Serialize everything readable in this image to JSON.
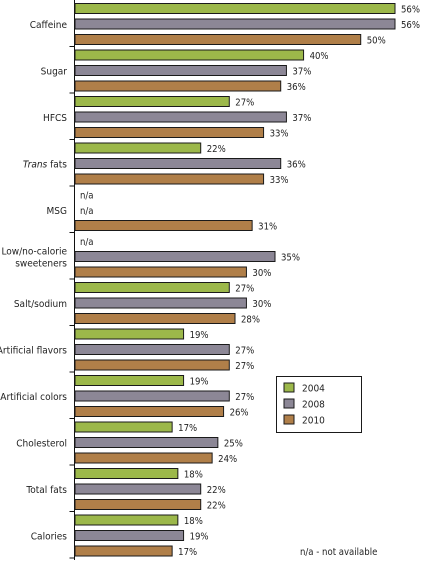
{
  "chart_data": {
    "type": "bar",
    "orientation": "horizontal",
    "title": "",
    "xlabel": "",
    "ylabel": "",
    "xlim": [
      0,
      56
    ],
    "grid": false,
    "legend_position": "bottom-right",
    "categories": [
      {
        "label": "Caffeine",
        "italic": ""
      },
      {
        "label": "Sugar",
        "italic": ""
      },
      {
        "label": "HFCS",
        "italic": ""
      },
      {
        "label": " fats",
        "italic": "Trans"
      },
      {
        "label": "MSG",
        "italic": ""
      },
      {
        "label": "Low/no-calorie|sweeteners",
        "italic": ""
      },
      {
        "label": "Salt/sodium",
        "italic": ""
      },
      {
        "label": "Artificial flavors",
        "italic": ""
      },
      {
        "label": "Artificial colors",
        "italic": ""
      },
      {
        "label": "Cholesterol",
        "italic": ""
      },
      {
        "label": "Total fats",
        "italic": ""
      },
      {
        "label": "Calories",
        "italic": ""
      }
    ],
    "series": [
      {
        "name": "2004",
        "color": "#9cb84a",
        "values": [
          56,
          40,
          27,
          22,
          null,
          null,
          27,
          19,
          19,
          17,
          18,
          18
        ]
      },
      {
        "name": "2008",
        "color": "#8c8796",
        "values": [
          56,
          37,
          37,
          36,
          null,
          35,
          30,
          27,
          27,
          25,
          22,
          19
        ]
      },
      {
        "name": "2010",
        "color": "#b07f49",
        "values": [
          50,
          36,
          33,
          33,
          31,
          30,
          28,
          27,
          26,
          24,
          22,
          17
        ]
      }
    ],
    "missing_label": "n/a",
    "value_suffix": "%",
    "annotation": "n/a - not available"
  }
}
